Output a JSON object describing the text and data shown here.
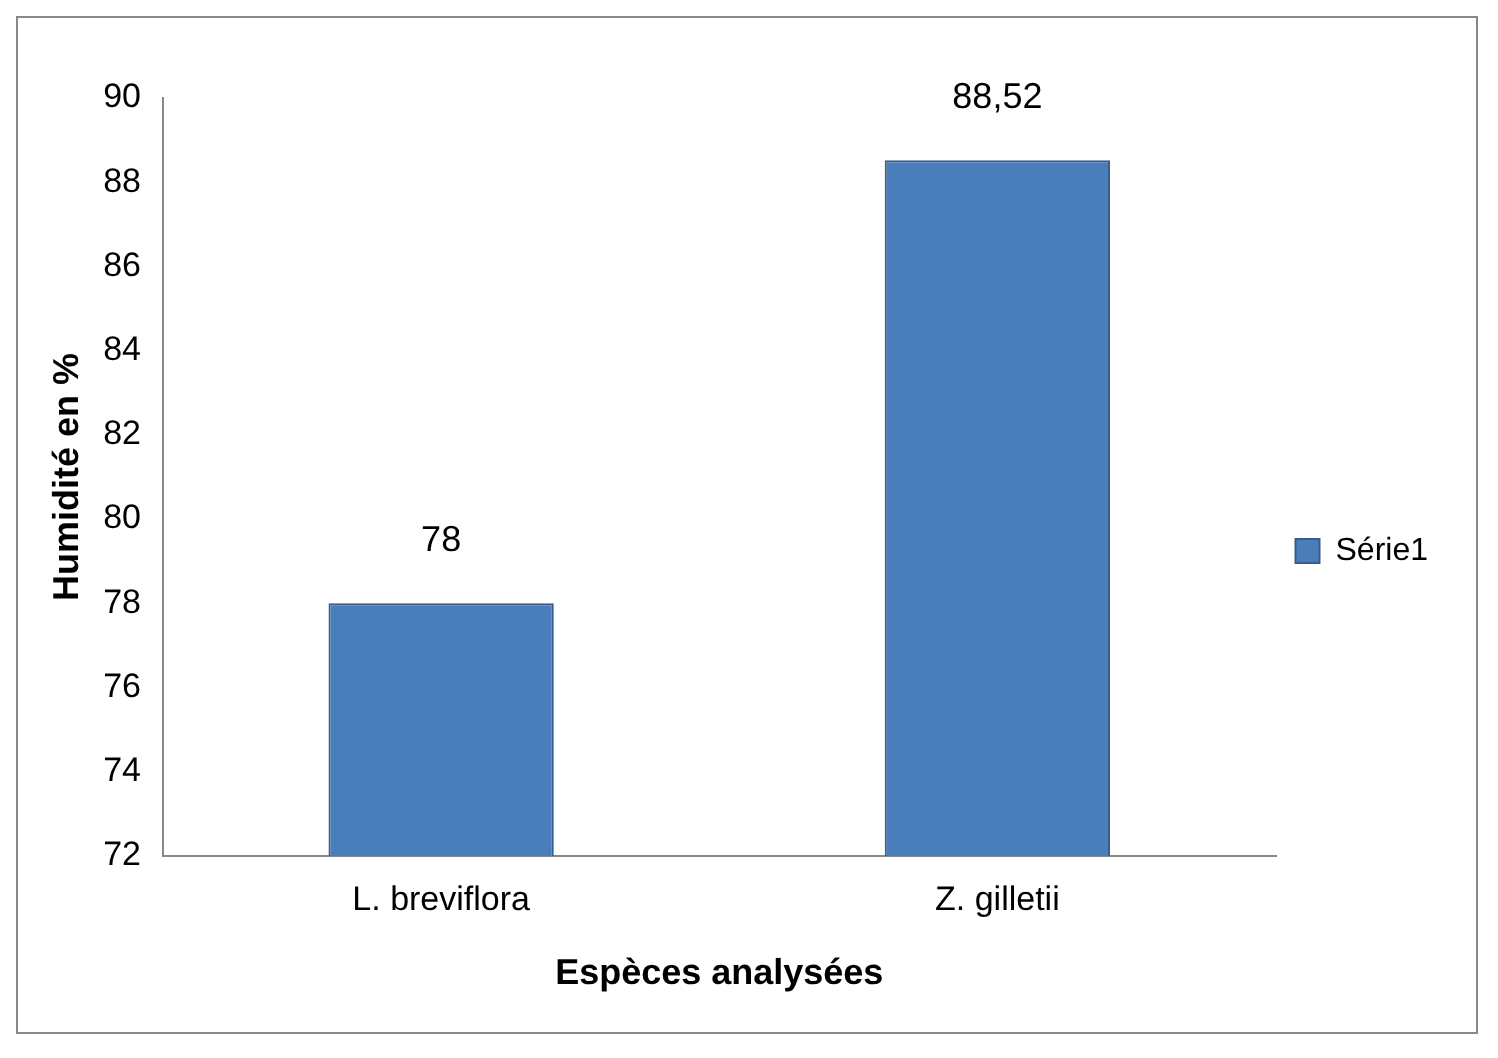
{
  "chart_data": {
    "type": "bar",
    "xlabel": "Espèces analysées",
    "ylabel": "Humidité en %",
    "categories": [
      "L. breviflora",
      "Z. gilletii"
    ],
    "series": [
      {
        "name": "Série1",
        "color": "#4a7ebb",
        "values": [
          78,
          88.52
        ],
        "value_labels": [
          "78",
          "88,52"
        ]
      }
    ],
    "ylim": [
      72,
      90
    ],
    "yticks": [
      72,
      74,
      76,
      78,
      80,
      82,
      84,
      86,
      88,
      90
    ],
    "legend": "right"
  }
}
